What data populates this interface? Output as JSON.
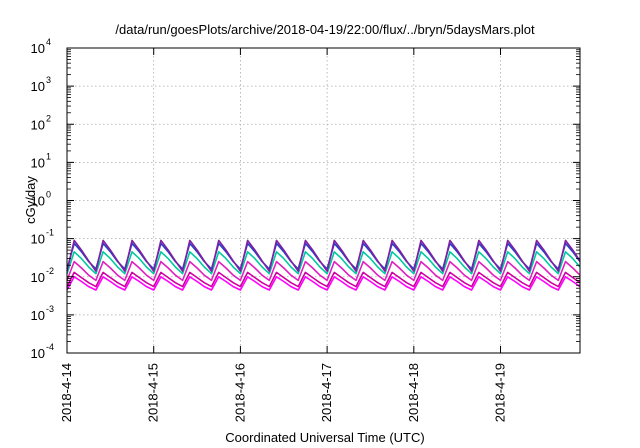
{
  "chart_data": {
    "type": "line",
    "title": "/data/run/goesPlots/archive/2018-04-19/22:00/flux/../bryn/5daysMars.plot",
    "xlabel": "Coordinated Universal Time (UTC)",
    "ylabel": "cGy/day",
    "yscale": "log",
    "ylim": [
      0.0001,
      10000
    ],
    "xlim": [
      "2018-04-14T00:00",
      "2018-04-19T22:00"
    ],
    "x_tick_labels": [
      "2018-4-14",
      "2018-4-15",
      "2018-4-16",
      "2018-4-17",
      "2018-4-18",
      "2018-4-19"
    ],
    "y_tick_labels": [
      {
        "base": "10",
        "exp": "-4"
      },
      {
        "base": "10",
        "exp": "-3"
      },
      {
        "base": "10",
        "exp": "-2"
      },
      {
        "base": "10",
        "exp": "-1"
      },
      {
        "base": "10",
        "exp": "0"
      },
      {
        "base": "10",
        "exp": "1"
      },
      {
        "base": "10",
        "exp": "2"
      },
      {
        "base": "10",
        "exp": "3"
      },
      {
        "base": "10",
        "exp": "4"
      }
    ],
    "grid": true,
    "sample_interval_hours": 2,
    "series": [
      {
        "color": "#ff00ff",
        "values": [
          0.0045,
          0.01,
          0.0075,
          0.0055,
          0.0045,
          0.01,
          0.0075,
          0.0055,
          0.0045,
          0.01,
          0.0075,
          0.0055,
          0.0045,
          0.01,
          0.0075,
          0.0055,
          0.0045,
          0.01,
          0.0075,
          0.0055,
          0.0045,
          0.01,
          0.0075,
          0.0055,
          0.0045,
          0.01,
          0.0075,
          0.0055,
          0.0045,
          0.01,
          0.0075,
          0.0055,
          0.0045,
          0.01,
          0.0075,
          0.0055,
          0.0045,
          0.01,
          0.0075,
          0.0055,
          0.0045,
          0.01,
          0.0075,
          0.0055,
          0.0045,
          0.01,
          0.0075,
          0.0055,
          0.0045,
          0.01,
          0.0075,
          0.0055,
          0.0045,
          0.01,
          0.0075,
          0.0055,
          0.0045,
          0.01,
          0.0075,
          0.0055,
          0.0045,
          0.01,
          0.0075,
          0.0055,
          0.0045,
          0.01,
          0.0075,
          0.0055,
          0.0045,
          0.01,
          0.0075,
          0.0055
        ]
      },
      {
        "color": "#d000a0",
        "values": [
          0.0055,
          0.013,
          0.0095,
          0.007,
          0.0055,
          0.013,
          0.0095,
          0.007,
          0.0055,
          0.013,
          0.0095,
          0.007,
          0.0055,
          0.013,
          0.0095,
          0.007,
          0.0055,
          0.013,
          0.0095,
          0.007,
          0.0055,
          0.013,
          0.0095,
          0.007,
          0.0055,
          0.013,
          0.0095,
          0.007,
          0.0055,
          0.013,
          0.0095,
          0.007,
          0.0055,
          0.013,
          0.0095,
          0.007,
          0.0055,
          0.013,
          0.0095,
          0.007,
          0.0055,
          0.013,
          0.0095,
          0.007,
          0.0055,
          0.013,
          0.0095,
          0.007,
          0.0055,
          0.013,
          0.0095,
          0.007,
          0.0055,
          0.013,
          0.0095,
          0.007,
          0.0055,
          0.013,
          0.0095,
          0.007,
          0.0055,
          0.013,
          0.0095,
          0.007,
          0.0055,
          0.013,
          0.0095,
          0.007,
          0.0055,
          0.013,
          0.0095,
          0.007
        ]
      },
      {
        "color": "#e020c0",
        "values": [
          0.008,
          0.025,
          0.017,
          0.011,
          0.008,
          0.025,
          0.017,
          0.011,
          0.008,
          0.025,
          0.017,
          0.011,
          0.008,
          0.025,
          0.017,
          0.011,
          0.008,
          0.025,
          0.017,
          0.011,
          0.008,
          0.025,
          0.017,
          0.011,
          0.008,
          0.025,
          0.017,
          0.011,
          0.008,
          0.025,
          0.017,
          0.011,
          0.008,
          0.025,
          0.017,
          0.011,
          0.008,
          0.025,
          0.017,
          0.011,
          0.008,
          0.025,
          0.017,
          0.011,
          0.008,
          0.025,
          0.017,
          0.011,
          0.008,
          0.025,
          0.017,
          0.011,
          0.008,
          0.025,
          0.017,
          0.011,
          0.008,
          0.025,
          0.017,
          0.011,
          0.008,
          0.025,
          0.017,
          0.011,
          0.008,
          0.025,
          0.017,
          0.011,
          0.008,
          0.025,
          0.017,
          0.011
        ]
      },
      {
        "color": "#00c8a0",
        "values": [
          0.012,
          0.045,
          0.03,
          0.018,
          0.012,
          0.045,
          0.03,
          0.018,
          0.012,
          0.045,
          0.03,
          0.018,
          0.012,
          0.045,
          0.03,
          0.018,
          0.012,
          0.045,
          0.03,
          0.018,
          0.012,
          0.045,
          0.03,
          0.018,
          0.012,
          0.045,
          0.03,
          0.018,
          0.012,
          0.045,
          0.03,
          0.018,
          0.012,
          0.045,
          0.03,
          0.018,
          0.012,
          0.045,
          0.03,
          0.018,
          0.012,
          0.045,
          0.03,
          0.018,
          0.012,
          0.045,
          0.03,
          0.018,
          0.012,
          0.045,
          0.03,
          0.018,
          0.012,
          0.045,
          0.03,
          0.018,
          0.012,
          0.045,
          0.03,
          0.018,
          0.012,
          0.045,
          0.03,
          0.018,
          0.012,
          0.045,
          0.03,
          0.018,
          0.012,
          0.045,
          0.03,
          0.018
        ]
      },
      {
        "color": "#2040d0",
        "values": [
          0.016,
          0.075,
          0.045,
          0.025,
          0.016,
          0.075,
          0.045,
          0.025,
          0.016,
          0.075,
          0.045,
          0.025,
          0.016,
          0.075,
          0.045,
          0.025,
          0.016,
          0.075,
          0.045,
          0.025,
          0.016,
          0.075,
          0.045,
          0.025,
          0.016,
          0.075,
          0.045,
          0.025,
          0.016,
          0.075,
          0.045,
          0.025,
          0.016,
          0.075,
          0.045,
          0.025,
          0.016,
          0.075,
          0.045,
          0.025,
          0.016,
          0.075,
          0.045,
          0.025,
          0.016,
          0.075,
          0.045,
          0.025,
          0.016,
          0.075,
          0.045,
          0.025,
          0.016,
          0.075,
          0.045,
          0.025,
          0.016,
          0.075,
          0.045,
          0.025,
          0.016,
          0.075,
          0.045,
          0.025,
          0.016,
          0.075,
          0.045,
          0.025,
          0.016,
          0.075,
          0.045,
          0.025
        ]
      },
      {
        "color": "#8020a0",
        "values": [
          0.014,
          0.09,
          0.05,
          0.026,
          0.014,
          0.09,
          0.05,
          0.026,
          0.014,
          0.09,
          0.05,
          0.026,
          0.014,
          0.09,
          0.05,
          0.026,
          0.014,
          0.09,
          0.05,
          0.026,
          0.014,
          0.09,
          0.05,
          0.026,
          0.014,
          0.09,
          0.05,
          0.026,
          0.014,
          0.09,
          0.05,
          0.026,
          0.014,
          0.09,
          0.05,
          0.026,
          0.014,
          0.09,
          0.05,
          0.026,
          0.014,
          0.09,
          0.05,
          0.026,
          0.014,
          0.09,
          0.05,
          0.026,
          0.014,
          0.09,
          0.05,
          0.026,
          0.014,
          0.09,
          0.05,
          0.026,
          0.014,
          0.09,
          0.05,
          0.026,
          0.014,
          0.09,
          0.05,
          0.026,
          0.014,
          0.09,
          0.05,
          0.026,
          0.014,
          0.09,
          0.05,
          0.026
        ]
      }
    ]
  }
}
